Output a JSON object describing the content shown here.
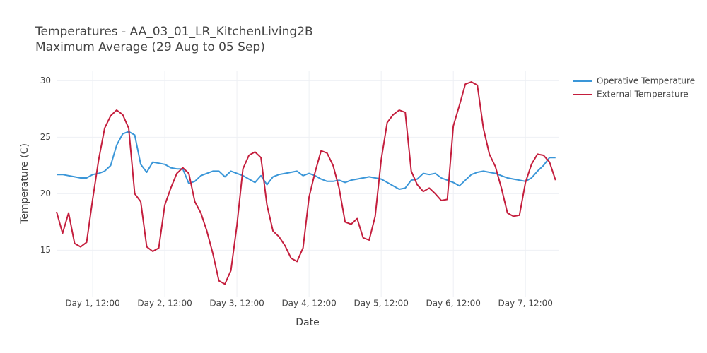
{
  "chart_data": {
    "type": "line",
    "title": "Temperatures - AA_03_01_LR_KitchenLiving2B",
    "subtitle": "Maximum Average (29 Aug to 05 Sep)",
    "x_label": "Date",
    "y_label": "Temperature (C)",
    "x": [
      0,
      2,
      4,
      6,
      8,
      10,
      12,
      14,
      16,
      18,
      20,
      22,
      24,
      26,
      28,
      30,
      32,
      34,
      36,
      38,
      40,
      42,
      44,
      46,
      48,
      50,
      52,
      54,
      56,
      58,
      60,
      62,
      64,
      66,
      68,
      70,
      72,
      74,
      76,
      78,
      80,
      82,
      84,
      86,
      88,
      90,
      92,
      94,
      96,
      98,
      100,
      102,
      104,
      106,
      108,
      110,
      112,
      114,
      116,
      118,
      120,
      122,
      124,
      126,
      128,
      130,
      132,
      134,
      136,
      138,
      140,
      142,
      144,
      146,
      148,
      150,
      152,
      154,
      156,
      158,
      160,
      162,
      164,
      166
    ],
    "xlim": [
      0,
      167
    ],
    "xticks": [
      {
        "value": 12,
        "label": "Day 1, 12:00"
      },
      {
        "value": 36,
        "label": "Day 2, 12:00"
      },
      {
        "value": 60,
        "label": "Day 3, 12:00"
      },
      {
        "value": 84,
        "label": "Day 4, 12:00"
      },
      {
        "value": 108,
        "label": "Day 5, 12:00"
      },
      {
        "value": 132,
        "label": "Day 6, 12:00"
      },
      {
        "value": 156,
        "label": "Day 7, 12:00"
      }
    ],
    "ylim": [
      10.9,
      30.9
    ],
    "yticks": [
      15,
      20,
      25,
      30
    ],
    "grid": true,
    "legend": "right",
    "series": [
      {
        "name": "Operative Temperature",
        "color": "#3a96d8",
        "values": [
          21.7,
          21.7,
          21.6,
          21.5,
          21.4,
          21.4,
          21.7,
          21.8,
          22.0,
          22.5,
          24.3,
          25.3,
          25.5,
          25.2,
          22.6,
          21.9,
          22.8,
          22.7,
          22.6,
          22.3,
          22.2,
          22.2,
          20.9,
          21.1,
          21.6,
          21.8,
          22.0,
          22.0,
          21.5,
          22.0,
          21.8,
          21.6,
          21.3,
          21.0,
          21.6,
          20.8,
          21.5,
          21.7,
          21.8,
          21.9,
          22.0,
          21.6,
          21.8,
          21.6,
          21.3,
          21.1,
          21.1,
          21.2,
          21.0,
          21.2,
          21.3,
          21.4,
          21.5,
          21.4,
          21.3,
          21.0,
          20.7,
          20.4,
          20.5,
          21.2,
          21.3,
          21.8,
          21.7,
          21.8,
          21.4,
          21.2,
          21.0,
          20.7,
          21.2,
          21.7,
          21.9,
          22.0,
          21.9,
          21.8,
          21.6,
          21.4,
          21.3,
          21.2,
          21.1,
          21.4,
          22.0,
          22.5,
          23.2,
          23.2
        ]
      },
      {
        "name": "External Temperature",
        "color": "#c41e3d",
        "values": [
          18.4,
          16.5,
          18.3,
          15.6,
          15.3,
          15.7,
          19.5,
          23.0,
          25.8,
          26.9,
          27.4,
          27.0,
          25.8,
          20.0,
          19.3,
          15.3,
          14.9,
          15.2,
          19.0,
          20.5,
          21.8,
          22.3,
          21.8,
          19.3,
          18.3,
          16.7,
          14.7,
          12.3,
          12.0,
          13.2,
          17.2,
          22.2,
          23.4,
          23.7,
          23.2,
          19.0,
          16.7,
          16.2,
          15.4,
          14.3,
          14.0,
          15.2,
          19.7,
          21.9,
          23.8,
          23.6,
          22.5,
          20.5,
          17.5,
          17.3,
          17.8,
          16.1,
          15.9,
          18.0,
          23.0,
          26.3,
          27.0,
          27.4,
          27.2,
          22.0,
          20.8,
          20.2,
          20.5,
          20.0,
          19.4,
          19.5,
          26.0,
          27.8,
          29.7,
          29.9,
          29.6,
          25.8,
          23.5,
          22.4,
          20.5,
          18.3,
          18.0,
          18.1,
          21.0,
          22.6,
          23.5,
          23.4,
          22.8,
          21.2
        ]
      }
    ]
  }
}
